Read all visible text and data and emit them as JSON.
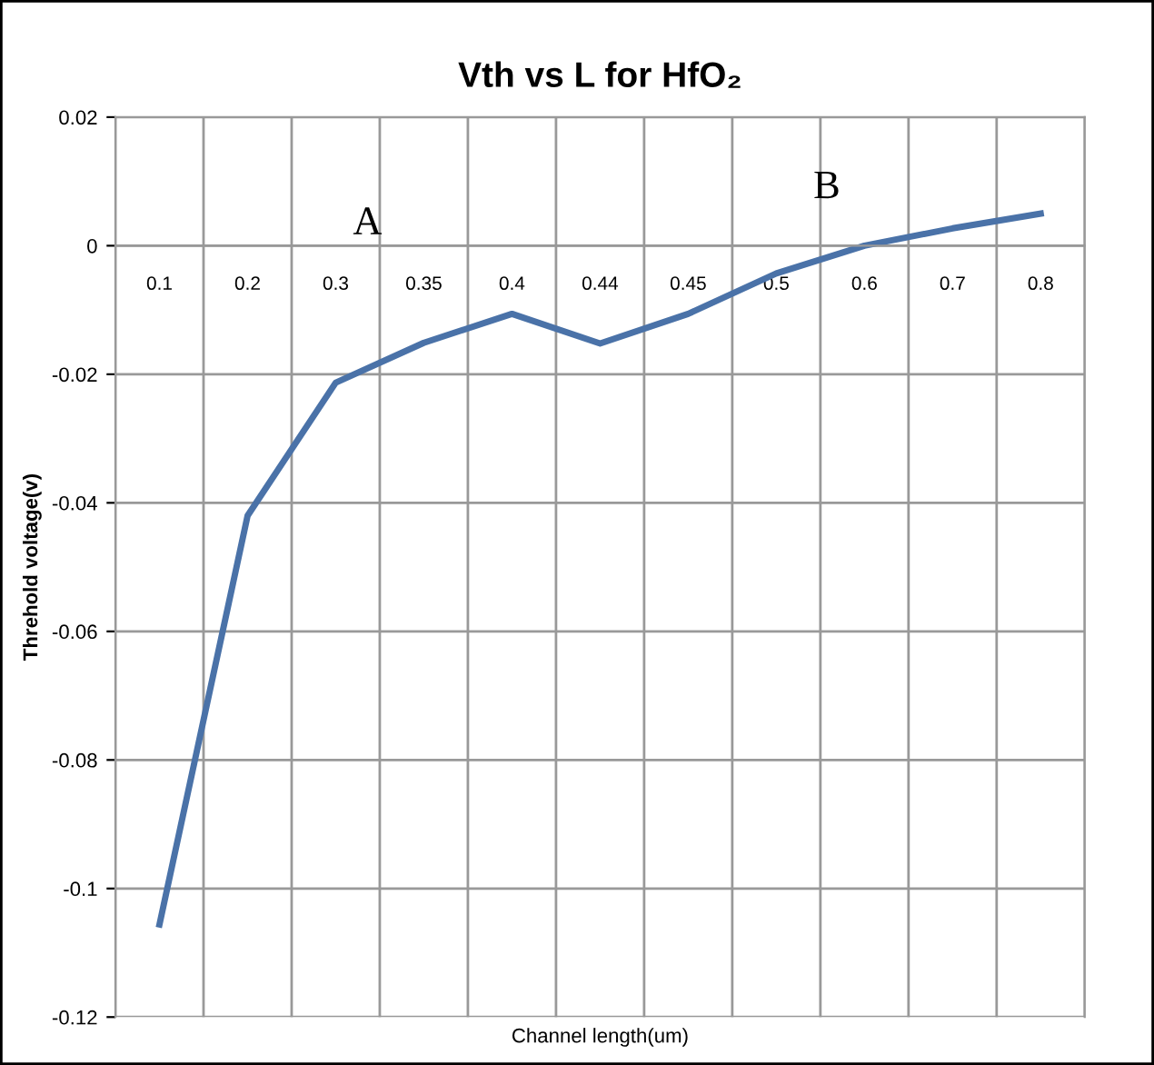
{
  "chart_data": {
    "type": "line",
    "title": "Vth vs L for HfO₂",
    "xlabel": "Channel length(um)",
    "ylabel": "Threhold voltage(v)",
    "categories": [
      "0.1",
      "0.2",
      "0.3",
      "0.35",
      "0.4",
      "0.44",
      "0.45",
      "0.5",
      "0.6",
      "0.7",
      "0.8"
    ],
    "series": [
      {
        "color": "#4a72a8",
        "values": [
          -0.1056,
          -0.042,
          -0.0213,
          -0.0151,
          -0.0106,
          -0.0152,
          -0.0106,
          -0.0043,
          0,
          0.0027,
          0.005
        ]
      }
    ],
    "ylim": [
      -0.12,
      0.02
    ],
    "yticks": [
      -0.12,
      -0.1,
      -0.08,
      -0.06,
      -0.04,
      -0.02,
      0,
      0.02
    ],
    "annotations": [
      "A",
      "B"
    ],
    "grid": true,
    "legend": false,
    "marker": "none",
    "line_style": "solid"
  }
}
